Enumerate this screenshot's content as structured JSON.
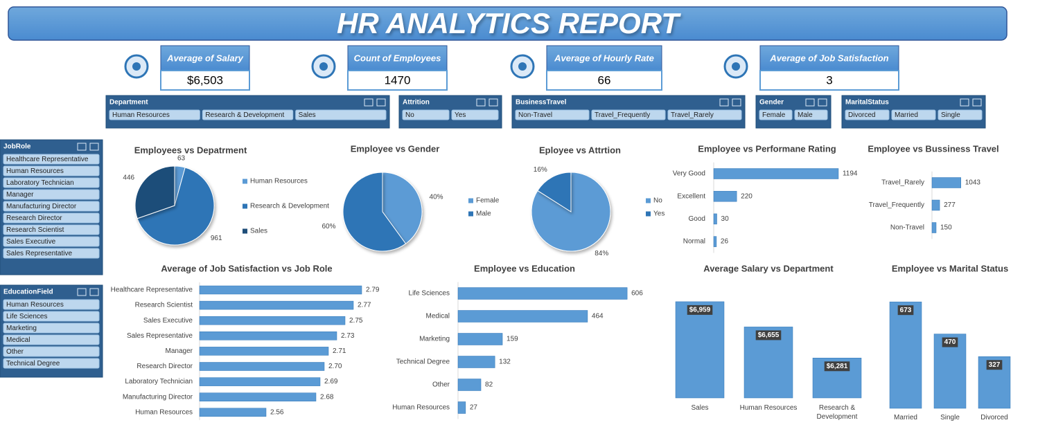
{
  "header": {
    "title": "HR ANALYTICS REPORT"
  },
  "kpis": [
    {
      "label": "Average of Salary",
      "value": "$6,503"
    },
    {
      "label": "Count of Employees",
      "value": 1470
    },
    {
      "label": "Average of Hourly Rate",
      "value": 66
    },
    {
      "label": "Average of Job Satisfaction",
      "value": 3
    }
  ],
  "slicers": [
    {
      "title": "Department",
      "items": [
        "Human Resources",
        "Research & Development",
        "Sales"
      ]
    },
    {
      "title": "Attrition",
      "items": [
        "No",
        "Yes"
      ]
    },
    {
      "title": "BusinessTravel",
      "items": [
        "Non-Travel",
        "Travel_Frequently",
        "Travel_Rarely"
      ]
    },
    {
      "title": "Gender",
      "items": [
        "Female",
        "Male"
      ]
    },
    {
      "title": "MaritalStatus",
      "items": [
        "Divorced",
        "Married",
        "Single"
      ]
    },
    {
      "title": "JobRole",
      "items": [
        "Healthcare Representative",
        "Human Resources",
        "Laboratory Technician",
        "Manager",
        "Manufacturing Director",
        "Research Director",
        "Research Scientist",
        "Sales Executive",
        "Sales Representative"
      ]
    },
    {
      "title": "EducationField",
      "items": [
        "Human Resources",
        "Life Sciences",
        "Marketing",
        "Medical",
        "Other",
        "Technical Degree"
      ]
    }
  ],
  "chart_data": [
    {
      "type": "pie",
      "title": "Employees vs Depatrment",
      "categories": [
        "Human Resources",
        "Research & Development",
        "Sales"
      ],
      "values": [
        63,
        961,
        446
      ],
      "colors": [
        "#5b9bd5",
        "#2e75b6",
        "#1f4e79"
      ],
      "legend": "right"
    },
    {
      "type": "pie",
      "title": "Employee vs Gender",
      "categories": [
        "Female",
        "Male"
      ],
      "values": [
        40,
        60
      ],
      "value_labels": [
        "40%",
        "60%"
      ],
      "colors": [
        "#5b9bd5",
        "#2e75b6"
      ],
      "legend": "right"
    },
    {
      "type": "pie",
      "title": "Eployee vs Attrtion",
      "categories": [
        "No",
        "Yes"
      ],
      "values": [
        84,
        16
      ],
      "value_labels": [
        "84%",
        "16%"
      ],
      "colors": [
        "#5b9bd5",
        "#2e75b6"
      ],
      "legend": "right"
    },
    {
      "type": "hbar",
      "title": "Employee vs Performane Rating",
      "categories": [
        "Very Good",
        "Excellent",
        "Good",
        "Normal"
      ],
      "values": [
        1194,
        220,
        30,
        26
      ],
      "color": "#5b9bd5",
      "xlim": [
        0,
        1400
      ]
    },
    {
      "type": "hbar",
      "title": "Employee vs Bussiness Travel",
      "categories": [
        "Travel_Rarely",
        "Travel_Frequently",
        "Non-Travel"
      ],
      "values": [
        1043,
        277,
        150
      ],
      "color": "#5b9bd5",
      "xlim": [
        0,
        1500
      ]
    },
    {
      "type": "hbar",
      "title": "Average of Job Satisfaction vs Job Role",
      "categories": [
        "Healthcare Representative",
        "Research Scientist",
        "Sales Executive",
        "Sales Representative",
        "Manager",
        "Research Director",
        "Laboratory Technician",
        "Manufacturing Director",
        "Human Resources"
      ],
      "values": [
        2.79,
        2.77,
        2.75,
        2.73,
        2.71,
        2.7,
        2.69,
        2.68,
        2.56
      ],
      "value_labels": [
        "2.79",
        "2.77",
        "2.75",
        "2.73",
        "2.71",
        "2.70",
        "2.69",
        "2.68",
        "2.56"
      ],
      "color": "#5b9bd5",
      "xlim": [
        2.4,
        2.8
      ]
    },
    {
      "type": "hbar",
      "title": "Employee vs Education",
      "categories": [
        "Life Sciences",
        "Medical",
        "Marketing",
        "Technical Degree",
        "Other",
        "Human Resources"
      ],
      "values": [
        606,
        464,
        159,
        132,
        82,
        27
      ],
      "color": "#5b9bd5",
      "xlim": [
        0,
        700
      ]
    },
    {
      "type": "bar",
      "title": "Average Salary vs Department",
      "categories": [
        "Sales",
        "Human Resources",
        "Research & Development"
      ],
      "values": [
        6959,
        6655,
        6281
      ],
      "value_labels": [
        "$6,959",
        "$6,655",
        "$6,281"
      ],
      "color": "#5b9bd5",
      "ylim": [
        5800,
        7000
      ]
    },
    {
      "type": "bar",
      "title": "Employee vs Marital Status",
      "categories": [
        "Married",
        "Single",
        "Divorced"
      ],
      "values": [
        673,
        470,
        327
      ],
      "color": "#5b9bd5",
      "ylim": [
        0,
        700
      ]
    }
  ]
}
